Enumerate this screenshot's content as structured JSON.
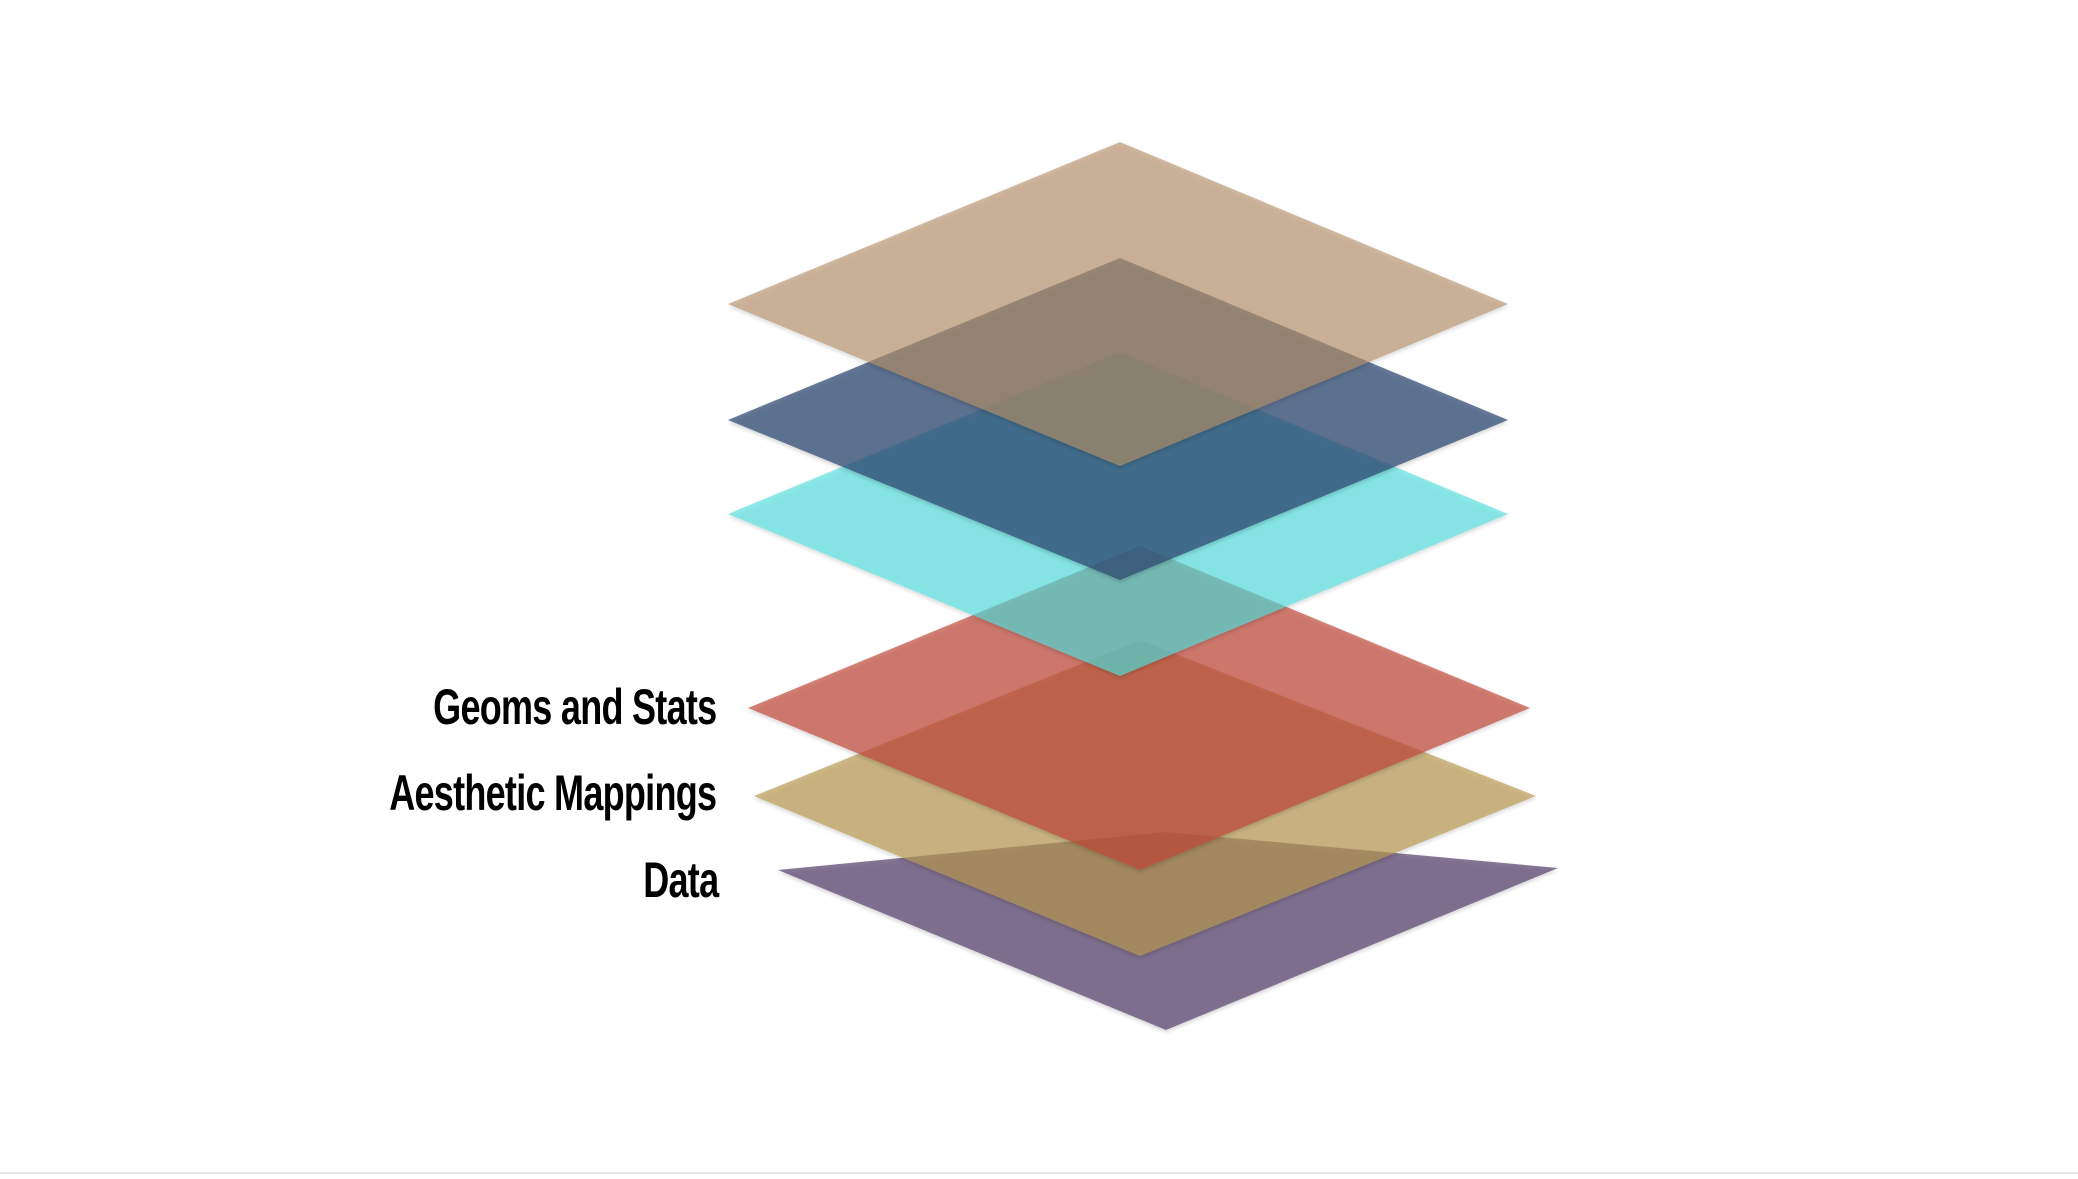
{
  "diagram": {
    "labels": {
      "geoms": "Geoms and Stats",
      "aesthetics": "Aesthetic Mappings",
      "data": "Data"
    },
    "layers": [
      {
        "name": "data-layer",
        "color": "#5a4670"
      },
      {
        "name": "aesthetic-mappings-layer",
        "color": "#b8984e"
      },
      {
        "name": "geoms-and-stats-layer",
        "color": "#c0473a"
      },
      {
        "name": "cyan-layer",
        "color": "#4de0de"
      },
      {
        "name": "navy-layer",
        "color": "#2c4a72"
      },
      {
        "name": "tan-layer",
        "color": "#b58f69"
      }
    ]
  }
}
